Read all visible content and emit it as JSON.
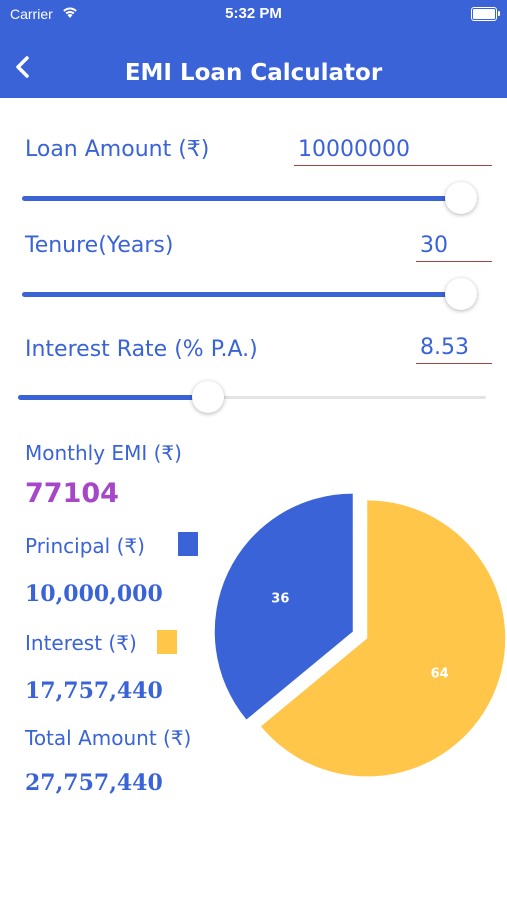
{
  "status_bar": {
    "carrier": "Carrier",
    "time": "5:32 PM"
  },
  "header": {
    "title": "EMI Loan Calculator"
  },
  "loan_amount": {
    "label": "Loan Amount (₹)",
    "value": "10000000",
    "slider_fraction": 1.0
  },
  "tenure": {
    "label": "Tenure(Years)",
    "value": "30",
    "slider_fraction": 1.0
  },
  "interest_rate": {
    "label": "Interest Rate (% P.A.)",
    "value": "8.53",
    "slider_fraction": 0.405
  },
  "results": {
    "monthly_emi_label": "Monthly EMI (₹)",
    "monthly_emi_value": "77104",
    "principal_label": "Principal (₹)",
    "principal_value": "10,000,000",
    "interest_label": "Interest (₹)",
    "interest_value": "17,757,440",
    "total_label": "Total Amount (₹)",
    "total_value": "27,757,440"
  },
  "colors": {
    "accent": "#3a63d8",
    "principal": "#3a63d8",
    "interest": "#ffc64a",
    "emi": "#a646c8"
  },
  "chart_data": {
    "type": "pie",
    "categories": [
      "Principal",
      "Interest"
    ],
    "values": [
      36,
      64
    ],
    "labels": [
      "36",
      "64"
    ],
    "colors": [
      "#3a63d8",
      "#ffc64a"
    ]
  }
}
